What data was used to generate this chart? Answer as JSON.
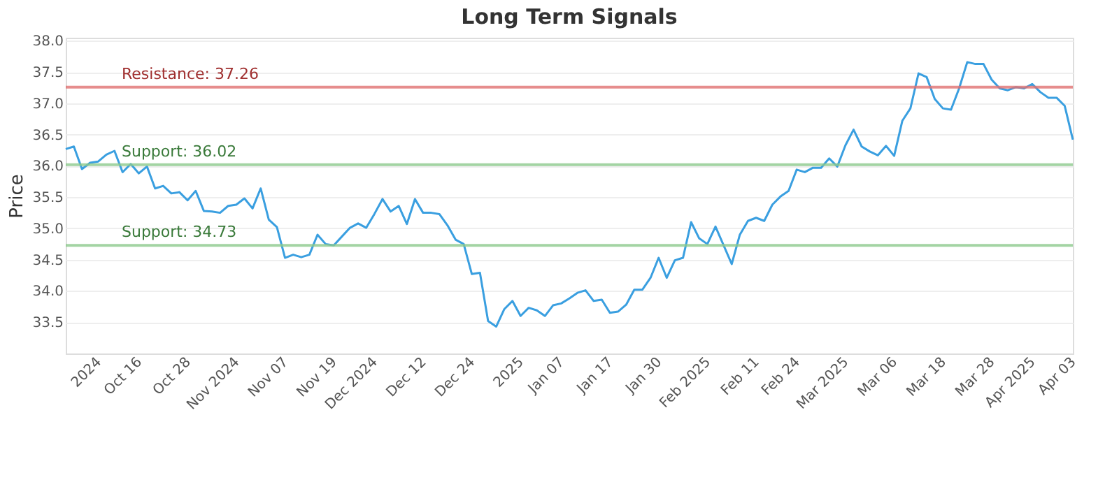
{
  "chart_data": {
    "type": "line",
    "title": "Long Term Signals",
    "ylabel": "Price",
    "categories": [
      null,
      null,
      null,
      null,
      "2024",
      null,
      null,
      null,
      null,
      "Oct 16",
      null,
      null,
      null,
      null,
      null,
      "Oct 28",
      null,
      null,
      null,
      null,
      null,
      "Nov 2024",
      null,
      null,
      null,
      null,
      null,
      "Nov 07",
      null,
      null,
      null,
      null,
      null,
      "Nov 19",
      null,
      null,
      null,
      null,
      "Dec 2024",
      null,
      null,
      null,
      null,
      null,
      "Dec 12",
      null,
      null,
      null,
      null,
      null,
      "Dec 24",
      null,
      null,
      null,
      null,
      null,
      "2025",
      null,
      null,
      null,
      null,
      "Jan 07",
      null,
      null,
      null,
      null,
      null,
      "Jan 17",
      null,
      null,
      null,
      null,
      null,
      "Jan 30",
      null,
      null,
      null,
      null,
      null,
      "Feb 2025",
      null,
      null,
      null,
      null,
      null,
      "Feb 11",
      null,
      null,
      null,
      null,
      "Feb 24",
      null,
      null,
      null,
      null,
      null,
      "Mar 2025",
      null,
      null,
      null,
      null,
      null,
      "Mar 06",
      null,
      null,
      null,
      null,
      null,
      "Mar 18",
      null,
      null,
      null,
      null,
      null,
      "Mar 28",
      null,
      null,
      null,
      null,
      "Apr 2025",
      null,
      null,
      null,
      null,
      "Apr 03"
    ],
    "series": [
      {
        "color": "#3a9fe0",
        "values": [
          36.27,
          36.31,
          35.95,
          36.05,
          36.07,
          36.18,
          36.24,
          35.9,
          36.03,
          35.88,
          35.99,
          35.64,
          35.68,
          35.56,
          35.58,
          35.45,
          35.6,
          35.28,
          35.27,
          35.25,
          35.36,
          35.38,
          35.48,
          35.32,
          35.64,
          35.14,
          35.02,
          34.53,
          34.58,
          34.54,
          34.58,
          34.9,
          34.75,
          34.73,
          34.87,
          35.01,
          35.08,
          35.01,
          35.23,
          35.47,
          35.27,
          35.36,
          35.07,
          35.47,
          35.25,
          35.25,
          35.23,
          35.05,
          34.82,
          34.75,
          34.27,
          34.29,
          33.52,
          33.43,
          33.71,
          33.84,
          33.6,
          33.73,
          33.69,
          33.6,
          33.77,
          33.8,
          33.88,
          33.97,
          34.01,
          33.84,
          33.86,
          33.65,
          33.67,
          33.78,
          34.02,
          34.02,
          34.21,
          34.53,
          34.21,
          34.49,
          34.53,
          35.1,
          34.84,
          34.75,
          35.03,
          34.73,
          34.43,
          34.9,
          35.12,
          35.17,
          35.12,
          35.38,
          35.51,
          35.6,
          35.94,
          35.9,
          35.97,
          35.97,
          36.12,
          35.99,
          36.33,
          36.58,
          36.31,
          36.23,
          36.17,
          36.32,
          36.16,
          36.72,
          36.92,
          37.48,
          37.42,
          37.07,
          36.92,
          36.9,
          37.24,
          37.66,
          37.63,
          37.63,
          37.38,
          37.24,
          37.21,
          37.26,
          37.24,
          37.31,
          37.18,
          37.09,
          37.09,
          36.96,
          36.42
        ]
      }
    ],
    "ylim": [
      33.0,
      38.05
    ],
    "yticks": [
      33.5,
      {
        "value": 34,
        "label": "34.0"
      },
      34.5,
      {
        "value": 35,
        "label": "35.0"
      },
      35.5,
      {
        "value": 36,
        "label": "36.0"
      },
      36.5,
      {
        "value": 37,
        "label": "37.0"
      },
      37.5,
      {
        "value": 38,
        "label": "38.0"
      }
    ],
    "grid": "y",
    "marker": "none",
    "line_style": "solid",
    "ref_lines": [
      {
        "axis": "y",
        "value": 37.26,
        "label": "Resistance: 37.26",
        "color": "#e07070"
      },
      {
        "axis": "y",
        "value": 36.02,
        "label": "Support: 36.02",
        "color": "#8cc98c"
      },
      {
        "axis": "y",
        "value": 34.73,
        "label": "Support: 34.73",
        "color": "#8cc98c"
      }
    ]
  }
}
